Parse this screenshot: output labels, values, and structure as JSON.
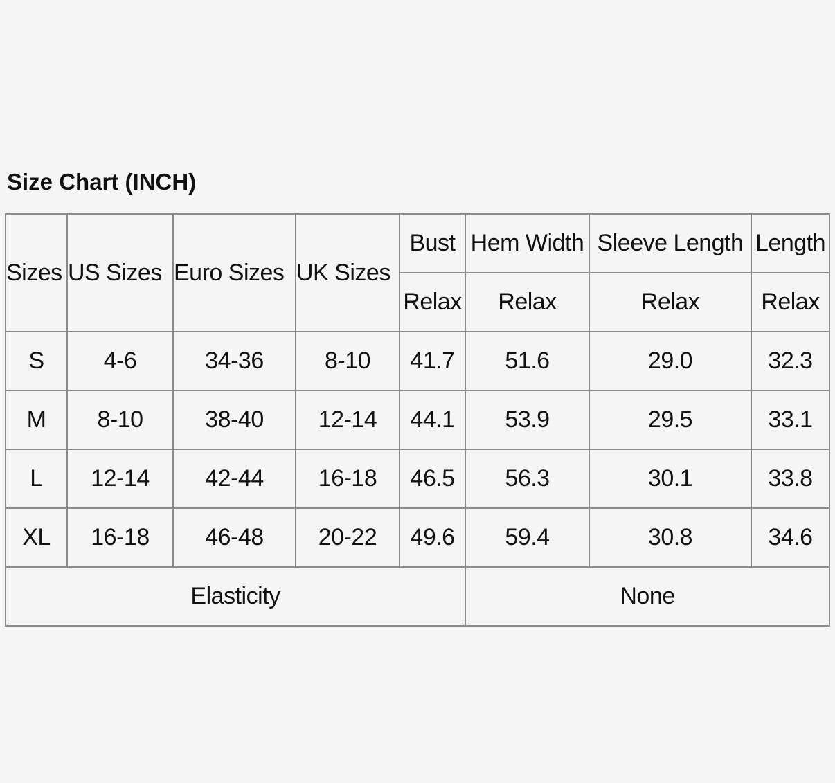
{
  "header": {
    "title": "Size Chart (INCH)"
  },
  "table": {
    "header_top": [
      "Sizes",
      "US Sizes",
      "Euro Sizes",
      "UK Sizes",
      "Bust",
      "Hem Width",
      "Sleeve Length",
      "Length"
    ],
    "header_sub": [
      "Relax",
      "Relax",
      "Relax",
      "Relax"
    ],
    "rows": [
      [
        "S",
        "4-6",
        "34-36",
        "8-10",
        "41.7",
        "51.6",
        "29.0",
        "32.3"
      ],
      [
        "M",
        "8-10",
        "38-40",
        "12-14",
        "44.1",
        "53.9",
        "29.5",
        "33.1"
      ],
      [
        "L",
        "12-14",
        "42-44",
        "16-18",
        "46.5",
        "56.3",
        "30.1",
        "33.8"
      ],
      [
        "XL",
        "16-18",
        "46-48",
        "20-22",
        "49.6",
        "59.4",
        "30.8",
        "34.6"
      ]
    ],
    "footer": [
      "Elasticity",
      "None"
    ]
  }
}
